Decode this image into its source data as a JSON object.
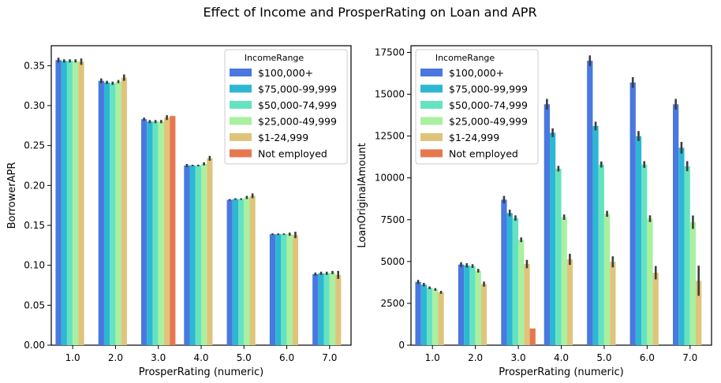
{
  "figure": {
    "title": "Effect of Income and ProsperRating on Loan and APR"
  },
  "chart_data": [
    {
      "type": "bar",
      "xlabel": "ProsperRating (numeric)",
      "ylabel": "BorrowerAPR",
      "categories": [
        "1.0",
        "2.0",
        "3.0",
        "4.0",
        "5.0",
        "6.0",
        "7.0"
      ],
      "ylim": [
        0,
        0.375
      ],
      "yticks": [
        0.0,
        0.05,
        0.1,
        0.15,
        0.2,
        0.25,
        0.3,
        0.35
      ],
      "ytick_labels": [
        "0.00",
        "0.05",
        "0.10",
        "0.15",
        "0.20",
        "0.25",
        "0.30",
        "0.35"
      ],
      "legend": {
        "title": "IncomeRange",
        "position": "top-right"
      },
      "series": [
        {
          "name": "$100,000+",
          "color": "#4878e0",
          "values": [
            0.357,
            0.331,
            0.283,
            0.225,
            0.182,
            0.139,
            0.089
          ],
          "err": [
            0.003,
            0.003,
            0.002,
            0.002,
            0.001,
            0.001,
            0.002
          ]
        },
        {
          "name": "$75,000-99,999",
          "color": "#2db7d3",
          "values": [
            0.356,
            0.329,
            0.28,
            0.225,
            0.183,
            0.139,
            0.09
          ],
          "err": [
            0.002,
            0.002,
            0.002,
            0.001,
            0.001,
            0.001,
            0.002
          ]
        },
        {
          "name": "$50,000-74,999",
          "color": "#65e3c1",
          "values": [
            0.356,
            0.328,
            0.28,
            0.225,
            0.183,
            0.139,
            0.09
          ],
          "err": [
            0.002,
            0.002,
            0.002,
            0.001,
            0.001,
            0.001,
            0.002
          ]
        },
        {
          "name": "$25,000-49,999",
          "color": "#aaf0a0",
          "values": [
            0.356,
            0.33,
            0.28,
            0.227,
            0.185,
            0.139,
            0.091
          ],
          "err": [
            0.002,
            0.002,
            0.002,
            0.002,
            0.002,
            0.002,
            0.002
          ]
        },
        {
          "name": "$1-24,999",
          "color": "#dfc47b",
          "values": [
            0.355,
            0.335,
            0.285,
            0.234,
            0.187,
            0.138,
            0.088
          ],
          "err": [
            0.004,
            0.004,
            0.003,
            0.003,
            0.003,
            0.004,
            0.005
          ]
        },
        {
          "name": "Not employed",
          "color": "#e6784f",
          "values": [
            null,
            null,
            0.287,
            null,
            null,
            null,
            null
          ],
          "err": [
            null,
            null,
            0,
            null,
            null,
            null,
            null
          ]
        }
      ]
    },
    {
      "type": "bar",
      "xlabel": "ProsperRating (numeric)",
      "ylabel": "LoanOriginalAmount",
      "categories": [
        "1.0",
        "2.0",
        "3.0",
        "4.0",
        "5.0",
        "6.0",
        "7.0"
      ],
      "ylim": [
        0,
        17900
      ],
      "yticks": [
        0,
        2500,
        5000,
        7500,
        10000,
        12500,
        15000,
        17500
      ],
      "ytick_labels": [
        "0",
        "2500",
        "5000",
        "7500",
        "10000",
        "12500",
        "15000",
        "17500"
      ],
      "legend": {
        "title": "IncomeRange",
        "position": "top-left"
      },
      "series": [
        {
          "name": "$100,000+",
          "color": "#4878e0",
          "values": [
            3780,
            4820,
            8700,
            14400,
            17000,
            15700,
            14400
          ],
          "err": [
            120,
            140,
            220,
            320,
            320,
            320,
            320
          ]
        },
        {
          "name": "$75,000-99,999",
          "color": "#2db7d3",
          "values": [
            3620,
            4770,
            7900,
            12700,
            13100,
            12500,
            11800
          ],
          "err": [
            100,
            130,
            200,
            260,
            260,
            300,
            350
          ]
        },
        {
          "name": "$50,000-74,999",
          "color": "#65e3c1",
          "values": [
            3430,
            4730,
            7600,
            10550,
            10800,
            10800,
            10700
          ],
          "err": [
            80,
            110,
            160,
            170,
            180,
            200,
            300
          ]
        },
        {
          "name": "$25,000-49,999",
          "color": "#aaf0a0",
          "values": [
            3330,
            4450,
            6300,
            7650,
            7850,
            7560,
            7350
          ],
          "err": [
            80,
            110,
            140,
            160,
            180,
            200,
            400
          ]
        },
        {
          "name": "$1-24,999",
          "color": "#dfc47b",
          "values": [
            3160,
            3650,
            4850,
            5130,
            4980,
            4330,
            3850
          ],
          "err": [
            90,
            150,
            250,
            330,
            330,
            400,
            900
          ]
        },
        {
          "name": "Not employed",
          "color": "#e6784f",
          "values": [
            null,
            null,
            1000,
            null,
            null,
            null,
            null
          ],
          "err": [
            null,
            null,
            0,
            null,
            null,
            null,
            null
          ]
        }
      ]
    }
  ]
}
